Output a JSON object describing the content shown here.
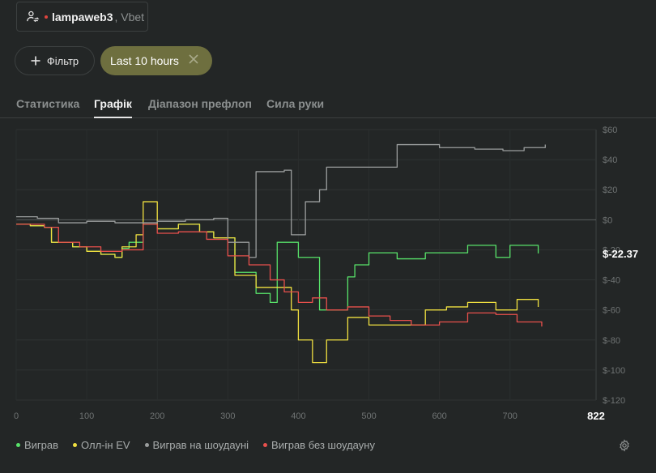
{
  "player": {
    "name": "lampaweb3",
    "site": ", Vbet",
    "icon": "user-switch-icon",
    "status_color": "#e0443e"
  },
  "filter": {
    "label": "Фільтр",
    "icon": "plus-icon"
  },
  "time_filter": {
    "label": "Last 10 hours",
    "remove_icon": "close-icon",
    "color": "#6e6f3f"
  },
  "tabs": [
    {
      "label": "Статистика",
      "active": false
    },
    {
      "label": "Графік",
      "active": true
    },
    {
      "label": "Діапазон префлоп",
      "active": false
    },
    {
      "label": "Сила руки",
      "active": false
    }
  ],
  "settings_icon": "gear-icon",
  "chart_data": {
    "type": "line",
    "title": "",
    "xlabel": "",
    "ylabel": "",
    "xlim": [
      0,
      822
    ],
    "ylim": [
      -120,
      60
    ],
    "x_ticks": [
      0,
      100,
      200,
      300,
      400,
      500,
      600,
      700
    ],
    "x_ticks_labels": [
      "0",
      "100",
      "200",
      "300",
      "400",
      "500",
      "600",
      "700"
    ],
    "x_end_label": "822",
    "y_ticks": [
      60,
      40,
      20,
      0,
      -20,
      -40,
      -60,
      -80,
      -100,
      -120
    ],
    "y_ticks_labels": [
      "$60",
      "$40",
      "$20",
      "$0",
      "$-20",
      "$-40",
      "$-60",
      "$-80",
      "$-100",
      "$-120"
    ],
    "current_value_label": "$-22.37",
    "grid": true,
    "legend_position": "bottom-left",
    "series": [
      {
        "name": "Виграв",
        "color": "#58e36a",
        "points": [
          [
            0,
            -3
          ],
          [
            20,
            -4
          ],
          [
            40,
            -5
          ],
          [
            50,
            -15
          ],
          [
            80,
            -18
          ],
          [
            100,
            -21
          ],
          [
            120,
            -23
          ],
          [
            140,
            -25
          ],
          [
            150,
            -19
          ],
          [
            160,
            -15
          ],
          [
            180,
            -3
          ],
          [
            200,
            -6
          ],
          [
            230,
            -3
          ],
          [
            260,
            -8
          ],
          [
            280,
            -12
          ],
          [
            310,
            -35
          ],
          [
            340,
            -49
          ],
          [
            360,
            -55
          ],
          [
            370,
            -15
          ],
          [
            400,
            -25
          ],
          [
            430,
            -60
          ],
          [
            470,
            -38
          ],
          [
            480,
            -30
          ],
          [
            500,
            -22
          ],
          [
            540,
            -26
          ],
          [
            580,
            -22
          ],
          [
            610,
            -22
          ],
          [
            640,
            -17
          ],
          [
            680,
            -25
          ],
          [
            700,
            -17
          ],
          [
            740,
            -22.4
          ]
        ]
      },
      {
        "name": "Олл-ін EV",
        "color": "#f0e040",
        "points": [
          [
            0,
            -3
          ],
          [
            20,
            -4
          ],
          [
            40,
            -5
          ],
          [
            50,
            -15
          ],
          [
            80,
            -18
          ],
          [
            100,
            -21
          ],
          [
            120,
            -23
          ],
          [
            140,
            -25
          ],
          [
            150,
            -18
          ],
          [
            170,
            -10
          ],
          [
            180,
            12
          ],
          [
            200,
            -6
          ],
          [
            230,
            -3
          ],
          [
            260,
            -8
          ],
          [
            280,
            -12
          ],
          [
            310,
            -37
          ],
          [
            340,
            -45
          ],
          [
            370,
            -45
          ],
          [
            390,
            -60
          ],
          [
            400,
            -80
          ],
          [
            420,
            -95
          ],
          [
            440,
            -80
          ],
          [
            470,
            -65
          ],
          [
            500,
            -70
          ],
          [
            540,
            -70
          ],
          [
            580,
            -60
          ],
          [
            610,
            -58
          ],
          [
            640,
            -55
          ],
          [
            680,
            -60
          ],
          [
            710,
            -53
          ],
          [
            740,
            -58
          ]
        ]
      },
      {
        "name": "Виграв на шоудауні",
        "color": "#9b9e9e",
        "points": [
          [
            0,
            2
          ],
          [
            30,
            1
          ],
          [
            60,
            -2
          ],
          [
            100,
            -1
          ],
          [
            140,
            -2
          ],
          [
            200,
            -1
          ],
          [
            240,
            0
          ],
          [
            280,
            1
          ],
          [
            300,
            -15
          ],
          [
            330,
            -25
          ],
          [
            340,
            32
          ],
          [
            380,
            33
          ],
          [
            390,
            -10
          ],
          [
            410,
            12
          ],
          [
            430,
            20
          ],
          [
            440,
            35
          ],
          [
            500,
            35
          ],
          [
            540,
            50
          ],
          [
            600,
            48
          ],
          [
            650,
            47
          ],
          [
            690,
            46
          ],
          [
            720,
            48
          ],
          [
            750,
            50
          ]
        ]
      },
      {
        "name": "Виграв без шоудауну",
        "color": "#e8504c",
        "points": [
          [
            0,
            -3
          ],
          [
            40,
            -5
          ],
          [
            60,
            -15
          ],
          [
            90,
            -18
          ],
          [
            120,
            -21
          ],
          [
            150,
            -20
          ],
          [
            180,
            -3
          ],
          [
            200,
            -9
          ],
          [
            230,
            -8
          ],
          [
            270,
            -13
          ],
          [
            300,
            -24
          ],
          [
            330,
            -30
          ],
          [
            360,
            -40
          ],
          [
            380,
            -48
          ],
          [
            400,
            -55
          ],
          [
            420,
            -52
          ],
          [
            440,
            -60
          ],
          [
            470,
            -58
          ],
          [
            500,
            -64
          ],
          [
            530,
            -67
          ],
          [
            560,
            -70
          ],
          [
            600,
            -68
          ],
          [
            640,
            -62
          ],
          [
            680,
            -63
          ],
          [
            710,
            -68
          ],
          [
            745,
            -71
          ]
        ]
      }
    ]
  }
}
